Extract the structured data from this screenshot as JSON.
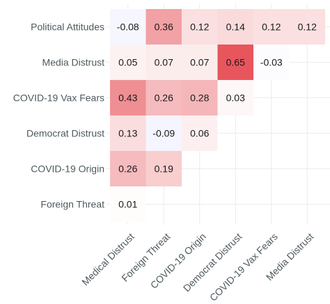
{
  "chart_data": {
    "type": "heatmap",
    "x_categories": [
      "Medical Distrust",
      "Foreign Threat",
      "COVID-19 Origin",
      "Democrat Distrust",
      "COVID-19 Vax Fears",
      "Media Distrust"
    ],
    "y_categories": [
      "Political Attitudes",
      "Media Distrust",
      "COVID-19 Vax Fears",
      "Democrat Distrust",
      "COVID-19 Origin",
      "Foreign Threat"
    ],
    "values": [
      [
        -0.08,
        0.36,
        0.12,
        0.14,
        0.12,
        0.12
      ],
      [
        0.05,
        0.07,
        0.07,
        0.65,
        -0.03,
        null
      ],
      [
        0.43,
        0.26,
        0.28,
        0.03,
        null,
        null
      ],
      [
        0.13,
        -0.09,
        0.06,
        null,
        null,
        null
      ],
      [
        0.26,
        0.19,
        null,
        null,
        null,
        null
      ],
      [
        0.01,
        null,
        null,
        null,
        null,
        null
      ]
    ],
    "value_labels": [
      [
        "-0.08",
        "0.36",
        "0.12",
        "0.14",
        "0.12",
        "0.12"
      ],
      [
        "0.05",
        "0.07",
        "0.07",
        "0.65",
        "-0.03",
        null
      ],
      [
        "0.43",
        "0.26",
        "0.28",
        "0.03",
        null,
        null
      ],
      [
        "0.13",
        "-0.09",
        "0.06",
        null,
        null,
        null
      ],
      [
        "0.26",
        "0.19",
        null,
        null,
        null,
        null
      ],
      [
        "0.01",
        null,
        null,
        null,
        null,
        null
      ]
    ],
    "color_scale": {
      "negative": "#6666ff",
      "zero": "#ffffff",
      "positive": "#e0242c"
    },
    "grid": true,
    "legend": "none",
    "title": "",
    "xlabel": "",
    "ylabel": ""
  }
}
